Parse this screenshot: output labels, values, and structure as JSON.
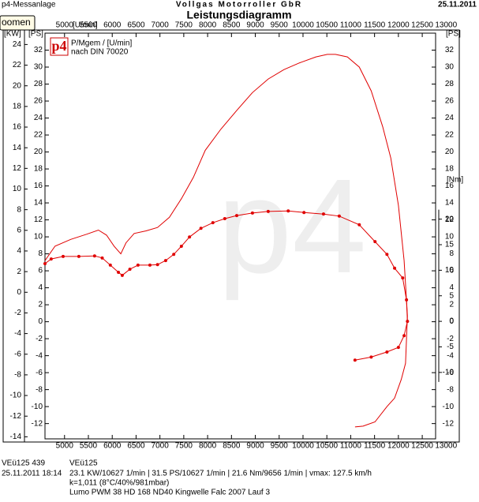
{
  "chart_data": {
    "type": "line",
    "app": "p4-Messanlage",
    "company": "Vollgas Motorroller GbR",
    "date": "25.11.2011",
    "title": "Leistungsdiagramm",
    "button": "oomen",
    "logo": "p4",
    "legend_lines": [
      "P/Mgem / [U/min]",
      "nach DIN 70020"
    ],
    "x_unit": "[U/min]",
    "y_unit": "[KW]",
    "y2_unit": "[PS]",
    "y3_unit": "[Nm]",
    "xlim": [
      4590,
      12780
    ],
    "xticks": [
      5000,
      5500,
      6000,
      6500,
      7000,
      7500,
      8000,
      8500,
      9000,
      9500,
      10000,
      10500,
      11000,
      11500,
      12000,
      12500,
      13000
    ],
    "ylim": [
      -14.2,
      25.1
    ],
    "yticks": [
      -14,
      -12,
      -10,
      -8,
      -6,
      -4,
      -2,
      0,
      2,
      4,
      6,
      8,
      10,
      12,
      14,
      16,
      18,
      20,
      22,
      24
    ],
    "y2lim": [
      -13.8,
      34.0
    ],
    "y2ticks": [
      -12,
      -10,
      -8,
      -6,
      -4,
      -2,
      0,
      2,
      4,
      6,
      8,
      10,
      12,
      14,
      16,
      18,
      20,
      22,
      24,
      26,
      28,
      30,
      32
    ],
    "y3lim": [
      -23,
      56.4
    ],
    "y3ticks": [
      -10,
      -5,
      0,
      5,
      10,
      15,
      20
    ],
    "series": [
      {
        "name": "Leistung",
        "color": "#e00000",
        "axis": "y2",
        "markers": false,
        "x": [
          4590,
          4800,
          5130,
          5460,
          5710,
          5880,
          6040,
          6180,
          6290,
          6460,
          6710,
          6950,
          7200,
          7450,
          7700,
          7950,
          8280,
          8610,
          8940,
          9270,
          9600,
          9930,
          10270,
          10510,
          10680,
          10930,
          11180,
          11430,
          11670,
          11840,
          12000,
          12120,
          12190,
          12150,
          12060,
          11920,
          11760,
          11510,
          11260,
          11090
        ],
        "values": [
          7.2,
          8.9,
          9.7,
          10.3,
          10.8,
          10.2,
          8.9,
          8.0,
          9.3,
          10.4,
          10.7,
          11.1,
          12.3,
          14.5,
          17.0,
          20.2,
          22.7,
          24.9,
          27.0,
          28.6,
          29.7,
          30.5,
          31.2,
          31.5,
          31.5,
          31.2,
          30.0,
          27.2,
          23.0,
          19.3,
          13.7,
          7.2,
          0.7,
          -4.9,
          -6.8,
          -9.0,
          -10.0,
          -11.8,
          -12.3,
          -12.4
        ]
      },
      {
        "name": "Drehmoment",
        "color": "#e00000",
        "axis": "y3",
        "markers": true,
        "x": [
          4590,
          4720,
          4970,
          5300,
          5630,
          5790,
          5960,
          6130,
          6210,
          6370,
          6540,
          6790,
          6950,
          7120,
          7290,
          7450,
          7620,
          7860,
          8110,
          8360,
          8610,
          8940,
          9270,
          9690,
          10020,
          10430,
          10760,
          11180,
          11510,
          11760,
          11920,
          12090,
          12170,
          12190,
          12120,
          12000,
          11760,
          11430,
          11090
        ],
        "values": [
          11.3,
          12.2,
          12.7,
          12.7,
          12.8,
          12.4,
          11.0,
          9.6,
          9.0,
          10.2,
          11.0,
          11.0,
          11.1,
          11.9,
          13.1,
          14.7,
          16.5,
          18.2,
          19.3,
          20.1,
          20.7,
          21.2,
          21.5,
          21.6,
          21.3,
          21.0,
          20.6,
          18.9,
          15.6,
          13.1,
          10.4,
          8.5,
          4.2,
          0,
          -2.8,
          -5.1,
          -6.0,
          -7.0,
          -7.6
        ]
      }
    ],
    "footer": {
      "vehicle_a": "VEü125 439",
      "vehicle_b": "VEü125",
      "timestamp": "25.11.2011   18:14",
      "results": "23.1 KW/10627 1/min   |  31.5 PS/10627 1/min   |  21.6 Nm/9656 1/min  | vmax: 127.5 km/h",
      "conditions": "k=1,011 (8°C/40%/981mbar)",
      "setup": "Lumo PWM 38 HD 168 ND40 Kingwelle Falc 2007 Lauf 3"
    }
  }
}
